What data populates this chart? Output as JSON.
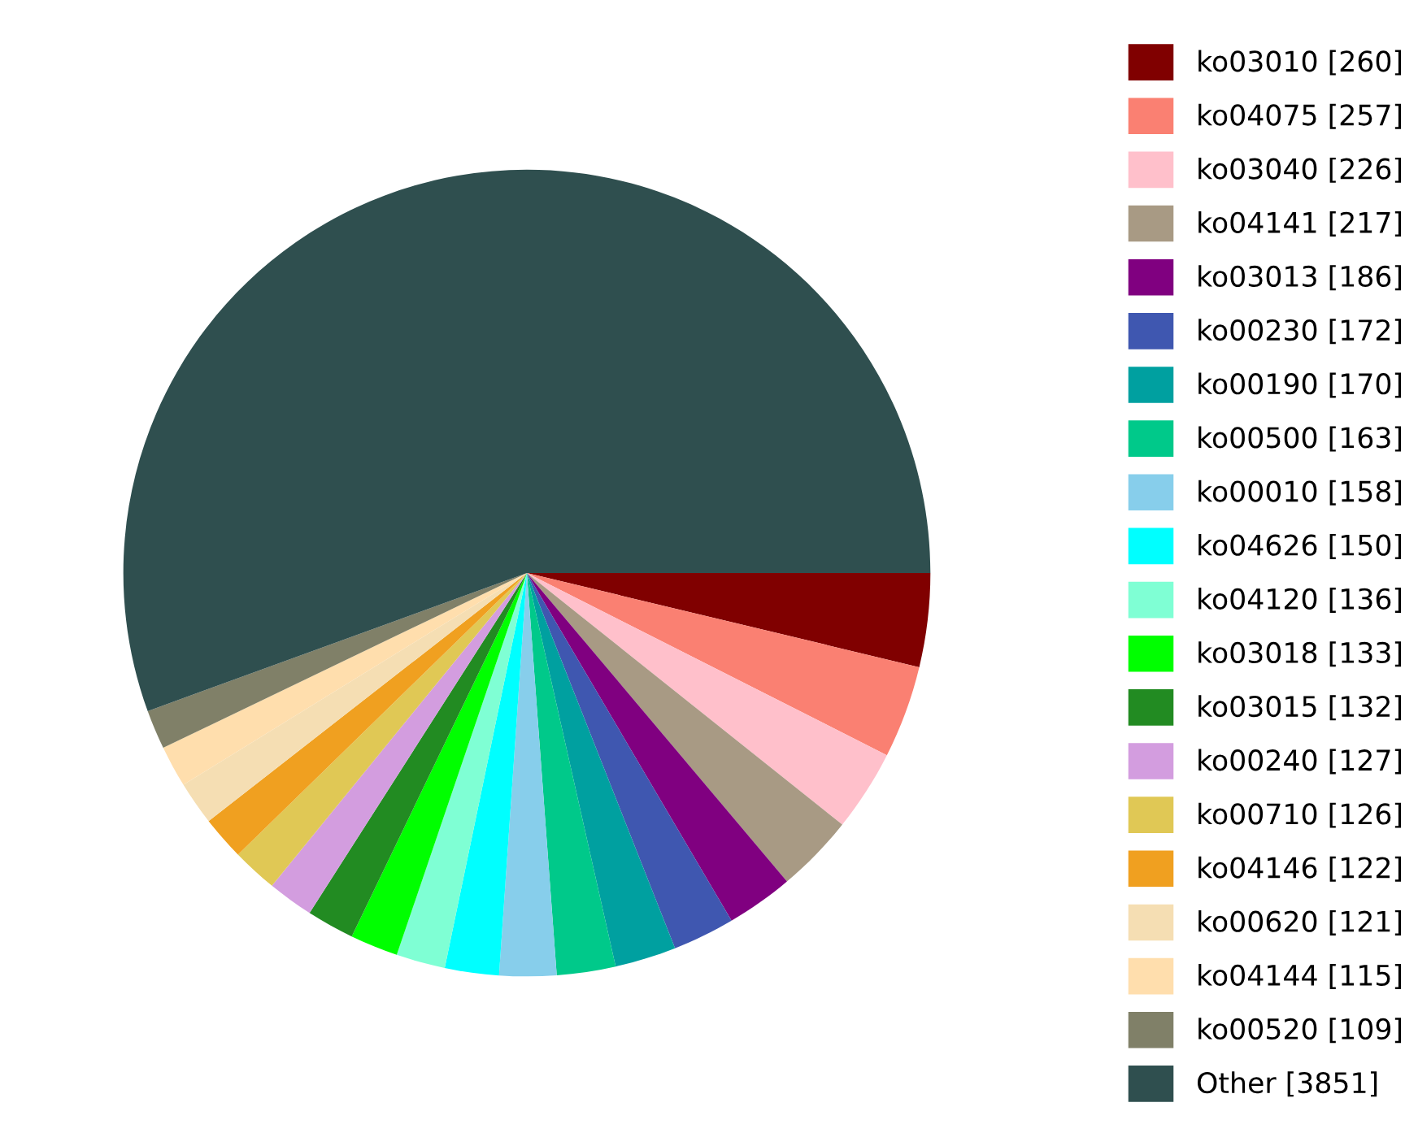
{
  "chart_data": {
    "type": "pie",
    "categories": [
      "ko03010 [260]",
      "ko04075 [257]",
      "ko03040 [226]",
      "ko04141 [217]",
      "ko03013 [186]",
      "ko00230 [172]",
      "ko00190 [170]",
      "ko00500 [163]",
      "ko00010 [158]",
      "ko04626 [150]",
      "ko04120 [136]",
      "ko03018 [133]",
      "ko03015 [132]",
      "ko00240 [127]",
      "ko00710 [126]",
      "ko04146 [122]",
      "ko00620 [121]",
      "ko04144 [115]",
      "ko00520 [109]",
      "Other [3851]"
    ],
    "values": [
      260,
      257,
      226,
      217,
      186,
      172,
      170,
      163,
      158,
      150,
      136,
      133,
      132,
      127,
      126,
      122,
      121,
      115,
      109,
      3851
    ],
    "colors": [
      "#800000",
      "#fa8072",
      "#ffc0cb",
      "#a89a84",
      "#800080",
      "#3f57b0",
      "#00a0a0",
      "#00c98a",
      "#87ceeb",
      "#00ffff",
      "#7fffd4",
      "#00ff00",
      "#228b22",
      "#d39ddf",
      "#e0c855",
      "#f0a020",
      "#f5deb3",
      "#ffdead",
      "#808068",
      "#2f4f4f"
    ],
    "legend": "right"
  }
}
